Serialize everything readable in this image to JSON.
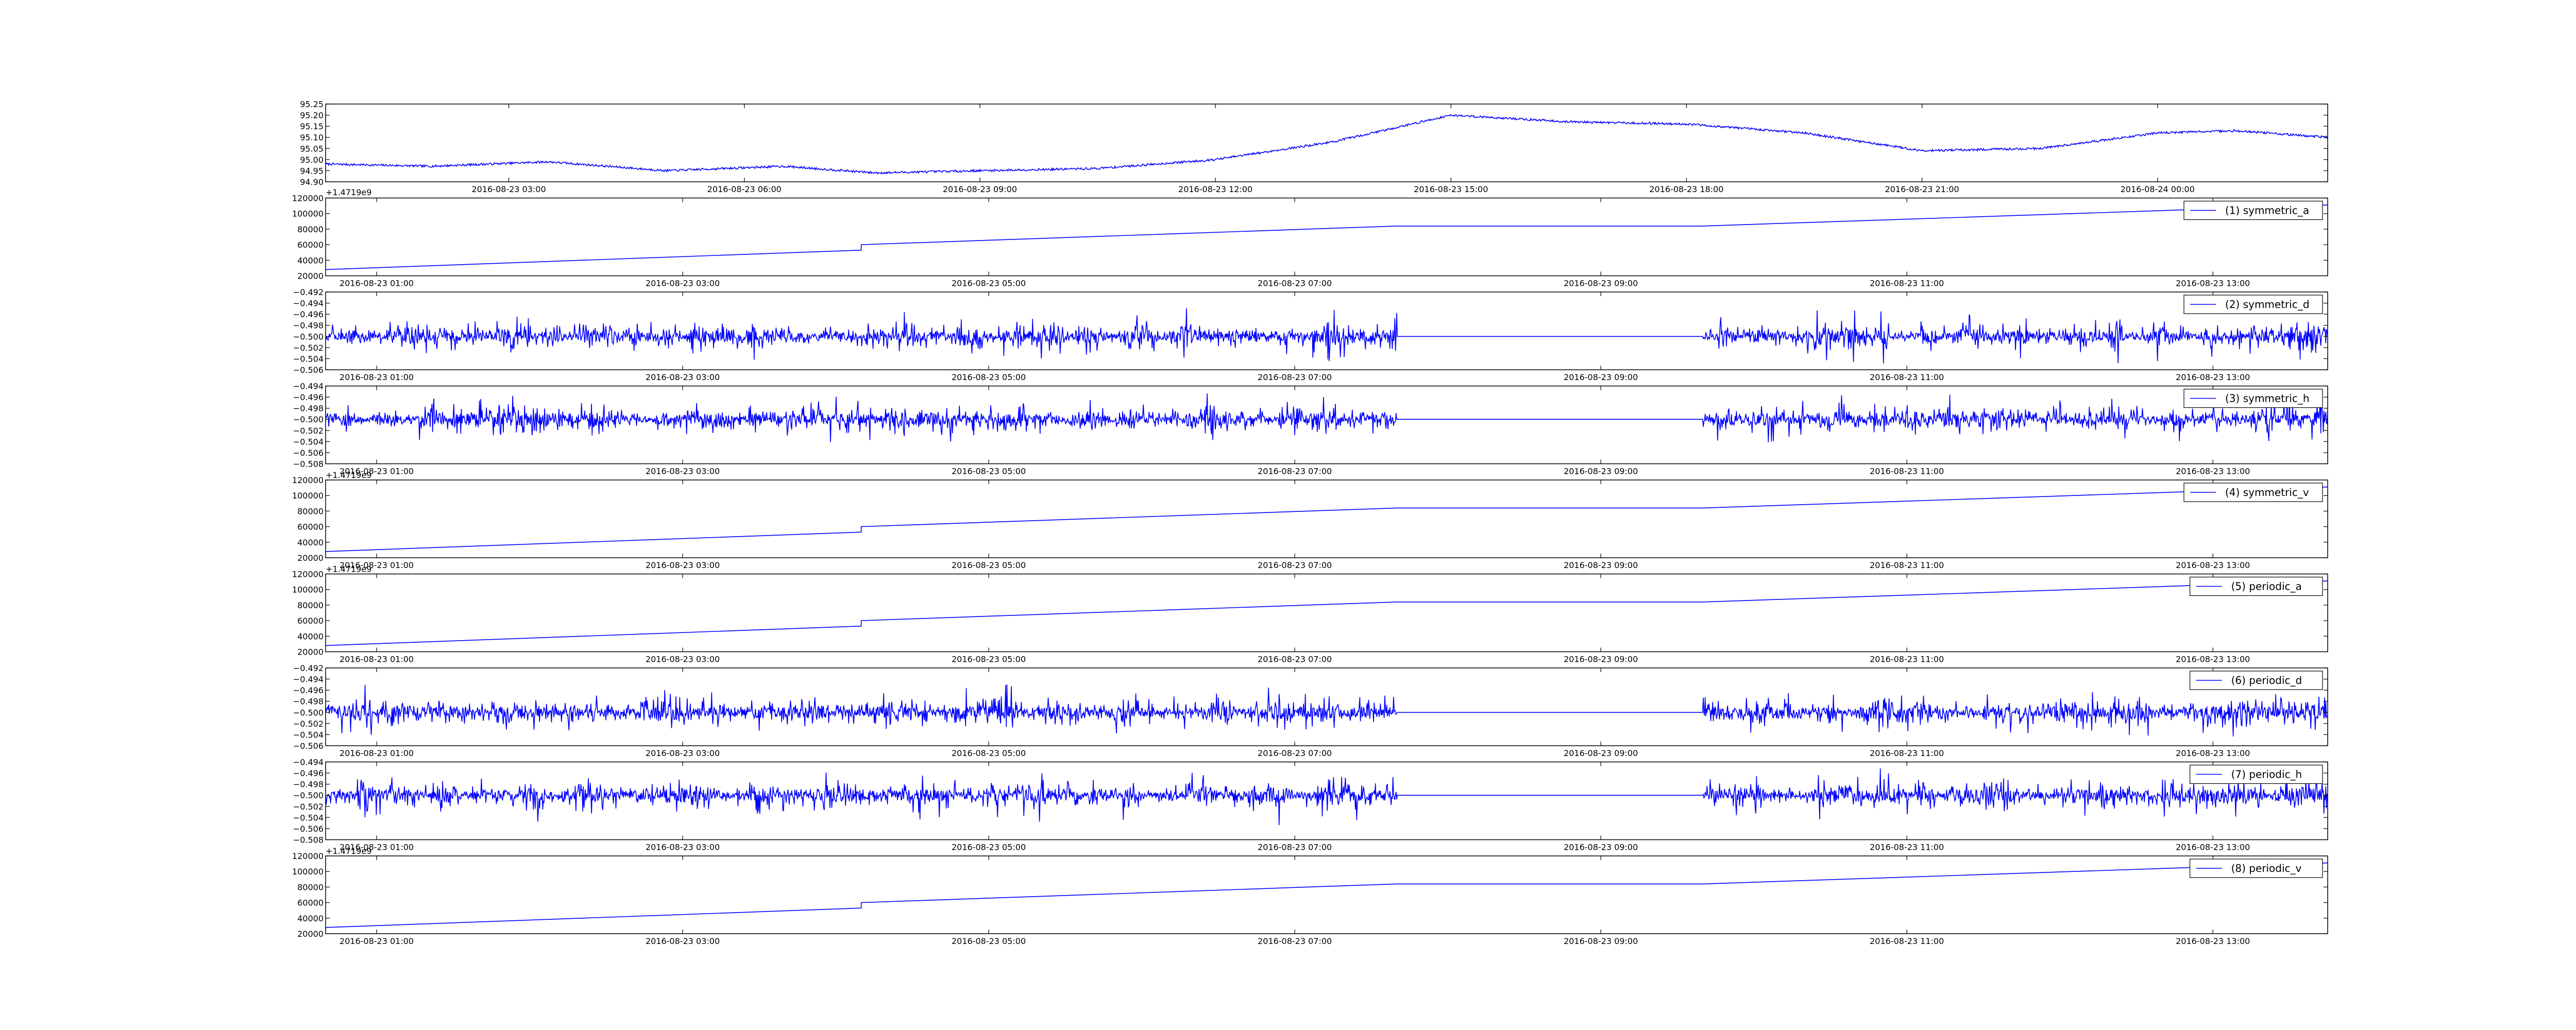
{
  "colors": {
    "line": "#0000ff",
    "axis": "#000000",
    "background": "#ffffff"
  },
  "chart_data": [
    {
      "type": "line",
      "legend": "",
      "offset_text": "+1.4719e9",
      "ylim": [
        94.9,
        95.25
      ],
      "yticks": [
        "94.90",
        "94.95",
        "95.00",
        "95.05",
        "95.10",
        "95.15",
        "95.20",
        "95.25"
      ],
      "xlim": [
        "2016-08-23 00:40",
        "2016-08-24 02:10"
      ],
      "xticks": [
        "2016-08-23 03:00",
        "2016-08-23 06:00",
        "2016-08-23 09:00",
        "2016-08-23 12:00",
        "2016-08-23 15:00",
        "2016-08-23 18:00",
        "2016-08-23 21:00",
        "2016-08-24 00:00"
      ],
      "x": [
        "2016-08-23 00:40",
        "2016-08-23 02:00",
        "2016-08-23 03:30",
        "2016-08-23 05:00",
        "2016-08-23 06:30",
        "2016-08-23 07:40",
        "2016-08-23 09:00",
        "2016-08-23 10:30",
        "2016-08-23 12:00",
        "2016-08-23 13:30",
        "2016-08-23 15:00",
        "2016-08-23 16:30",
        "2016-08-23 18:00",
        "2016-08-23 19:30",
        "2016-08-23 21:00",
        "2016-08-23 22:30",
        "2016-08-24 00:00",
        "2016-08-24 01:00",
        "2016-08-24 02:10"
      ],
      "y": [
        94.98,
        94.97,
        94.99,
        94.95,
        94.97,
        94.94,
        94.95,
        94.96,
        95.0,
        95.08,
        95.2,
        95.17,
        95.16,
        95.12,
        95.04,
        95.05,
        95.12,
        95.13,
        95.1
      ],
      "noise_amplitude": 0.005
    },
    {
      "type": "line",
      "legend": "(1) symmetric_a",
      "offset_text": "",
      "ylim": [
        20000,
        120000
      ],
      "yticks": [
        "20000",
        "40000",
        "60000",
        "80000",
        "100000",
        "120000"
      ],
      "xlim": [
        "2016-08-23 00:40",
        "2016-08-23 13:45"
      ],
      "xticks": [
        "2016-08-23 01:00",
        "2016-08-23 03:00",
        "2016-08-23 05:00",
        "2016-08-23 07:00",
        "2016-08-23 09:00",
        "2016-08-23 11:00",
        "2016-08-23 13:00"
      ],
      "x": [
        "2016-08-23 00:40",
        "2016-08-23 04:10",
        "2016-08-23 04:10",
        "2016-08-23 07:40",
        "2016-08-23 09:40",
        "2016-08-23 13:45"
      ],
      "y": [
        28000,
        53000,
        60000,
        84000,
        84000,
        111000
      ]
    },
    {
      "type": "line",
      "legend": "(2) symmetric_d",
      "offset_text": "",
      "ylim": [
        -0.506,
        -0.492
      ],
      "yticks": [
        "−0.506",
        "−0.504",
        "−0.502",
        "−0.500",
        "−0.498",
        "−0.496",
        "−0.494",
        "−0.492"
      ],
      "xlim": [
        "2016-08-23 00:40",
        "2016-08-23 13:45"
      ],
      "xticks": [
        "2016-08-23 01:00",
        "2016-08-23 03:00",
        "2016-08-23 05:00",
        "2016-08-23 07:00",
        "2016-08-23 09:00",
        "2016-08-23 11:00",
        "2016-08-23 13:00"
      ],
      "baseline": -0.5,
      "noise_amplitude": 0.0055,
      "flat_range": [
        "2016-08-23 07:40",
        "2016-08-23 09:40"
      ]
    },
    {
      "type": "line",
      "legend": "(3) symmetric_h",
      "offset_text": "",
      "ylim": [
        -0.508,
        -0.494
      ],
      "yticks": [
        "−0.508",
        "−0.506",
        "−0.504",
        "−0.502",
        "−0.500",
        "−0.498",
        "−0.496",
        "−0.494"
      ],
      "xlim": [
        "2016-08-23 00:40",
        "2016-08-23 13:45"
      ],
      "xticks": [
        "2016-08-23 01:00",
        "2016-08-23 03:00",
        "2016-08-23 05:00",
        "2016-08-23 07:00",
        "2016-08-23 09:00",
        "2016-08-23 11:00",
        "2016-08-23 13:00"
      ],
      "baseline": -0.5,
      "noise_amplitude": 0.0055,
      "flat_range": [
        "2016-08-23 07:40",
        "2016-08-23 09:40"
      ]
    },
    {
      "type": "line",
      "legend": "(4) symmetric_v",
      "offset_text": "+1.4719e9",
      "ylim": [
        20000,
        120000
      ],
      "yticks": [
        "20000",
        "40000",
        "60000",
        "80000",
        "100000",
        "120000"
      ],
      "xlim": [
        "2016-08-23 00:40",
        "2016-08-23 13:45"
      ],
      "xticks": [
        "2016-08-23 01:00",
        "2016-08-23 03:00",
        "2016-08-23 05:00",
        "2016-08-23 07:00",
        "2016-08-23 09:00",
        "2016-08-23 11:00",
        "2016-08-23 13:00"
      ],
      "x": [
        "2016-08-23 00:40",
        "2016-08-23 04:10",
        "2016-08-23 04:10",
        "2016-08-23 07:40",
        "2016-08-23 09:40",
        "2016-08-23 13:45"
      ],
      "y": [
        28000,
        53000,
        60000,
        84000,
        84000,
        111000
      ]
    },
    {
      "type": "line",
      "legend": "(5) periodic_a",
      "offset_text": "+1.4719e9",
      "ylim": [
        20000,
        120000
      ],
      "yticks": [
        "20000",
        "40000",
        "60000",
        "80000",
        "100000",
        "120000"
      ],
      "xlim": [
        "2016-08-23 00:40",
        "2016-08-23 13:45"
      ],
      "xticks": [
        "2016-08-23 01:00",
        "2016-08-23 03:00",
        "2016-08-23 05:00",
        "2016-08-23 07:00",
        "2016-08-23 09:00",
        "2016-08-23 11:00",
        "2016-08-23 13:00"
      ],
      "x": [
        "2016-08-23 00:40",
        "2016-08-23 04:10",
        "2016-08-23 04:10",
        "2016-08-23 07:40",
        "2016-08-23 09:40",
        "2016-08-23 13:45"
      ],
      "y": [
        28000,
        53000,
        60000,
        84000,
        84000,
        111000
      ]
    },
    {
      "type": "line",
      "legend": "(6) periodic_d",
      "offset_text": "",
      "ylim": [
        -0.506,
        -0.492
      ],
      "yticks": [
        "−0.506",
        "−0.504",
        "−0.502",
        "−0.500",
        "−0.498",
        "−0.496",
        "−0.494",
        "−0.492"
      ],
      "xlim": [
        "2016-08-23 00:40",
        "2016-08-23 13:45"
      ],
      "xticks": [
        "2016-08-23 01:00",
        "2016-08-23 03:00",
        "2016-08-23 05:00",
        "2016-08-23 07:00",
        "2016-08-23 09:00",
        "2016-08-23 11:00",
        "2016-08-23 13:00"
      ],
      "baseline": -0.5,
      "noise_amplitude": 0.0055,
      "flat_range": [
        "2016-08-23 07:40",
        "2016-08-23 09:40"
      ]
    },
    {
      "type": "line",
      "legend": "(7) periodic_h",
      "offset_text": "",
      "ylim": [
        -0.508,
        -0.494
      ],
      "yticks": [
        "−0.508",
        "−0.506",
        "−0.504",
        "−0.502",
        "−0.500",
        "−0.498",
        "−0.496",
        "−0.494"
      ],
      "xlim": [
        "2016-08-23 00:40",
        "2016-08-23 13:45"
      ],
      "xticks": [
        "2016-08-23 01:00",
        "2016-08-23 03:00",
        "2016-08-23 05:00",
        "2016-08-23 07:00",
        "2016-08-23 09:00",
        "2016-08-23 11:00",
        "2016-08-23 13:00"
      ],
      "baseline": -0.5,
      "noise_amplitude": 0.0055,
      "flat_range": [
        "2016-08-23 07:40",
        "2016-08-23 09:40"
      ]
    },
    {
      "type": "line",
      "legend": "(8) periodic_v",
      "offset_text": "+1.4719e9",
      "ylim": [
        20000,
        120000
      ],
      "yticks": [
        "20000",
        "40000",
        "60000",
        "80000",
        "100000",
        "120000"
      ],
      "xlim": [
        "2016-08-23 00:40",
        "2016-08-23 13:45"
      ],
      "xticks": [
        "2016-08-23 01:00",
        "2016-08-23 03:00",
        "2016-08-23 05:00",
        "2016-08-23 07:00",
        "2016-08-23 09:00",
        "2016-08-23 11:00",
        "2016-08-23 13:00"
      ],
      "x": [
        "2016-08-23 00:40",
        "2016-08-23 04:10",
        "2016-08-23 04:10",
        "2016-08-23 07:40",
        "2016-08-23 09:40",
        "2016-08-23 13:45"
      ],
      "y": [
        28000,
        53000,
        60000,
        84000,
        84000,
        111000
      ]
    }
  ]
}
